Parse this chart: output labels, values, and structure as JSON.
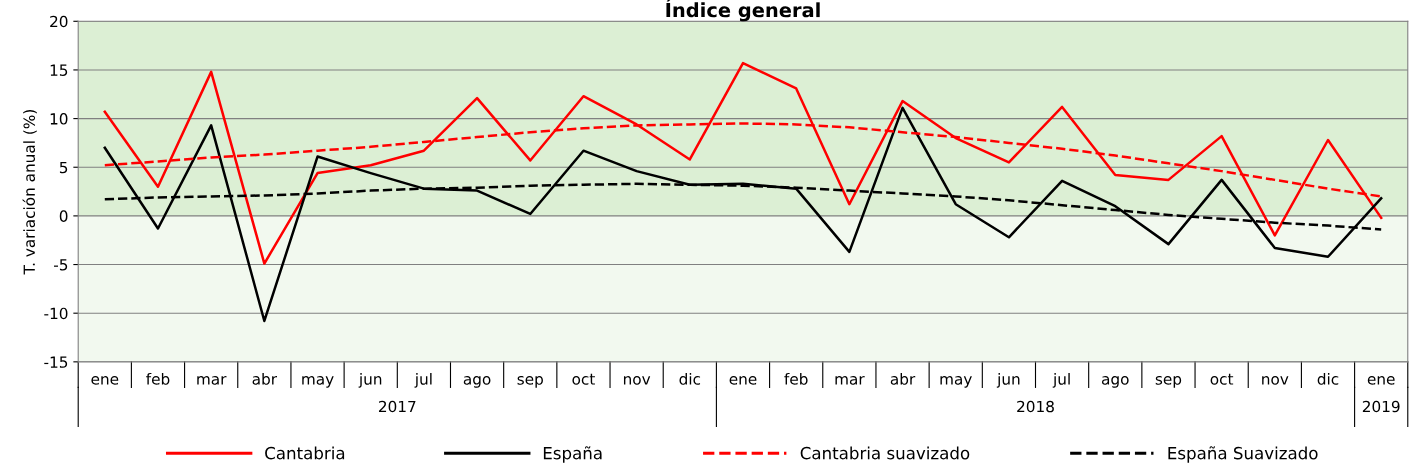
{
  "chart_data": {
    "type": "line",
    "title": "Índice general",
    "ylabel": "T. variación anual (%)",
    "categories": [
      "ene",
      "feb",
      "mar",
      "abr",
      "may",
      "jun",
      "jul",
      "ago",
      "sep",
      "oct",
      "nov",
      "dic",
      "ene",
      "feb",
      "mar",
      "abr",
      "may",
      "jun",
      "jul",
      "ago",
      "sep",
      "oct",
      "nov",
      "dic",
      "ene"
    ],
    "annotations": [
      "2017",
      "2018",
      "2019"
    ],
    "series": [
      {
        "name": "Cantabria",
        "color": "#ff0000",
        "line_style": "solid",
        "values": [
          10.7,
          3.0,
          14.8,
          -4.9,
          4.4,
          5.2,
          6.7,
          12.1,
          5.7,
          12.3,
          9.4,
          5.8,
          15.7,
          13.1,
          1.2,
          11.8,
          8.0,
          5.5,
          11.2,
          4.2,
          3.7,
          8.2,
          -2.0,
          7.8,
          -0.2
        ]
      },
      {
        "name": "España",
        "color": "#000000",
        "line_style": "solid",
        "values": [
          7.0,
          -1.3,
          9.3,
          -10.8,
          6.1,
          4.4,
          2.8,
          2.6,
          0.2,
          6.7,
          4.6,
          3.2,
          3.3,
          2.8,
          -3.7,
          11.1,
          1.2,
          -2.2,
          3.6,
          1.0,
          -2.9,
          3.7,
          -3.3,
          -4.2,
          1.8
        ]
      },
      {
        "name": "Cantabria suavizado",
        "color": "#ff0000",
        "line_style": "dashed",
        "values": [
          5.2,
          5.6,
          6.0,
          6.3,
          6.7,
          7.1,
          7.6,
          8.1,
          8.6,
          9.0,
          9.3,
          9.4,
          9.5,
          9.4,
          9.1,
          8.6,
          8.1,
          7.5,
          6.9,
          6.2,
          5.4,
          4.6,
          3.7,
          2.8,
          2.0
        ]
      },
      {
        "name": "España Suavizado",
        "color": "#000000",
        "line_style": "dashed",
        "values": [
          1.7,
          1.9,
          2.0,
          2.1,
          2.3,
          2.6,
          2.8,
          2.9,
          3.1,
          3.2,
          3.3,
          3.2,
          3.1,
          2.9,
          2.6,
          2.3,
          2.0,
          1.6,
          1.1,
          0.6,
          0.1,
          -0.3,
          -0.7,
          -1.0,
          -1.4
        ]
      }
    ],
    "ylim": [
      -15,
      20
    ],
    "yticks": [
      -15,
      -10,
      -5,
      0,
      5,
      10,
      15,
      20
    ],
    "bands": [
      {
        "axis": "y",
        "from": 0,
        "to": 20,
        "color": "#dcefd4"
      },
      {
        "axis": "y",
        "from": -15,
        "to": 0,
        "color": "#f2f9ef"
      }
    ],
    "grid": "y",
    "legend": "bottom",
    "marker": "none"
  }
}
